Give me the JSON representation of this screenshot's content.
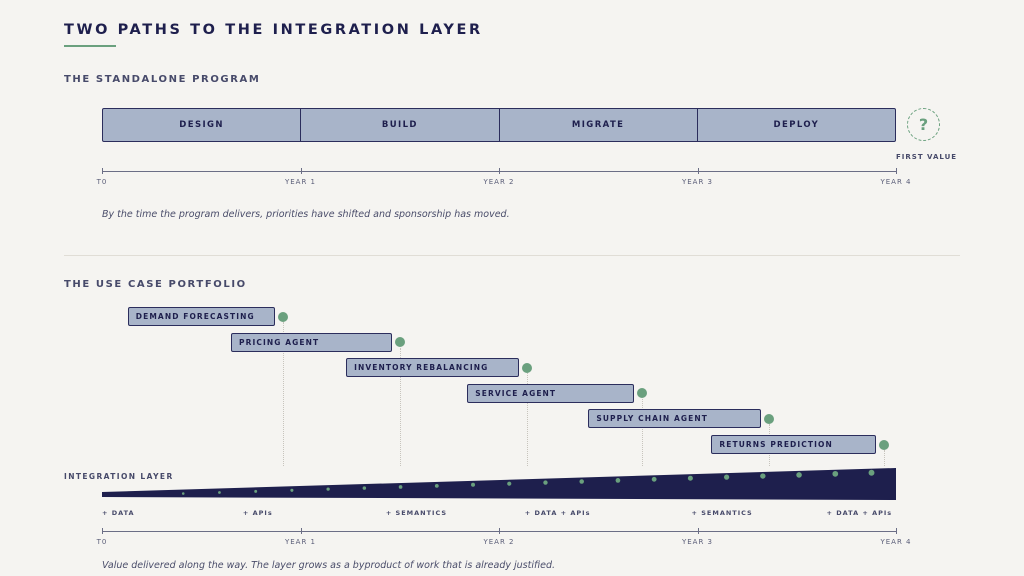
{
  "title": "TWO PATHS TO THE INTEGRATION LAYER",
  "standalone": {
    "heading": "THE STANDALONE PROGRAM",
    "phases": [
      "DESIGN",
      "BUILD",
      "MIGRATE",
      "DEPLOY"
    ],
    "unknown_marker": "?",
    "first_value_label": "FIRST VALUE",
    "axis_ticks": [
      "T0",
      "YEAR 1",
      "YEAR 2",
      "YEAR 3",
      "YEAR 4"
    ],
    "note": "By the time the program delivers, priorities have shifted and sponsorship has moved."
  },
  "portfolio": {
    "heading": "THE USE CASE PORTFOLIO",
    "use_cases": [
      {
        "label": "DEMAND FORECASTING",
        "start_year": 0.13,
        "end_year": 0.87
      },
      {
        "label": "PRICING AGENT",
        "start_year": 0.65,
        "end_year": 1.46
      },
      {
        "label": "INVENTORY REBALANCING",
        "start_year": 1.23,
        "end_year": 2.1
      },
      {
        "label": "SERVICE AGENT",
        "start_year": 1.84,
        "end_year": 2.68
      },
      {
        "label": "SUPPLY CHAIN AGENT",
        "start_year": 2.45,
        "end_year": 3.32
      },
      {
        "label": "RETURNS PREDICTION",
        "start_year": 3.07,
        "end_year": 3.9
      }
    ],
    "layer_label": "INTEGRATION LAYER",
    "layer_additions": [
      {
        "label": "+ DATA",
        "year": 0.0
      },
      {
        "label": "+ APIs",
        "year": 0.71
      },
      {
        "label": "+ SEMANTICS",
        "year": 1.43
      },
      {
        "label": "+ DATA + APIs",
        "year": 2.13
      },
      {
        "label": "+ SEMANTICS",
        "year": 2.97
      },
      {
        "label": "+ DATA + APIs",
        "year": 3.65
      }
    ],
    "axis_ticks": [
      "T0",
      "YEAR 1",
      "YEAR 2",
      "YEAR 3",
      "YEAR 4"
    ],
    "note": "Value delivered along the way. The layer grows as a byproduct of work that is already justified."
  },
  "colors": {
    "navy": "#1e1f4d",
    "bar_fill": "#a8b4c9",
    "accent_green": "#6aa07e",
    "background": "#f5f4f1"
  }
}
